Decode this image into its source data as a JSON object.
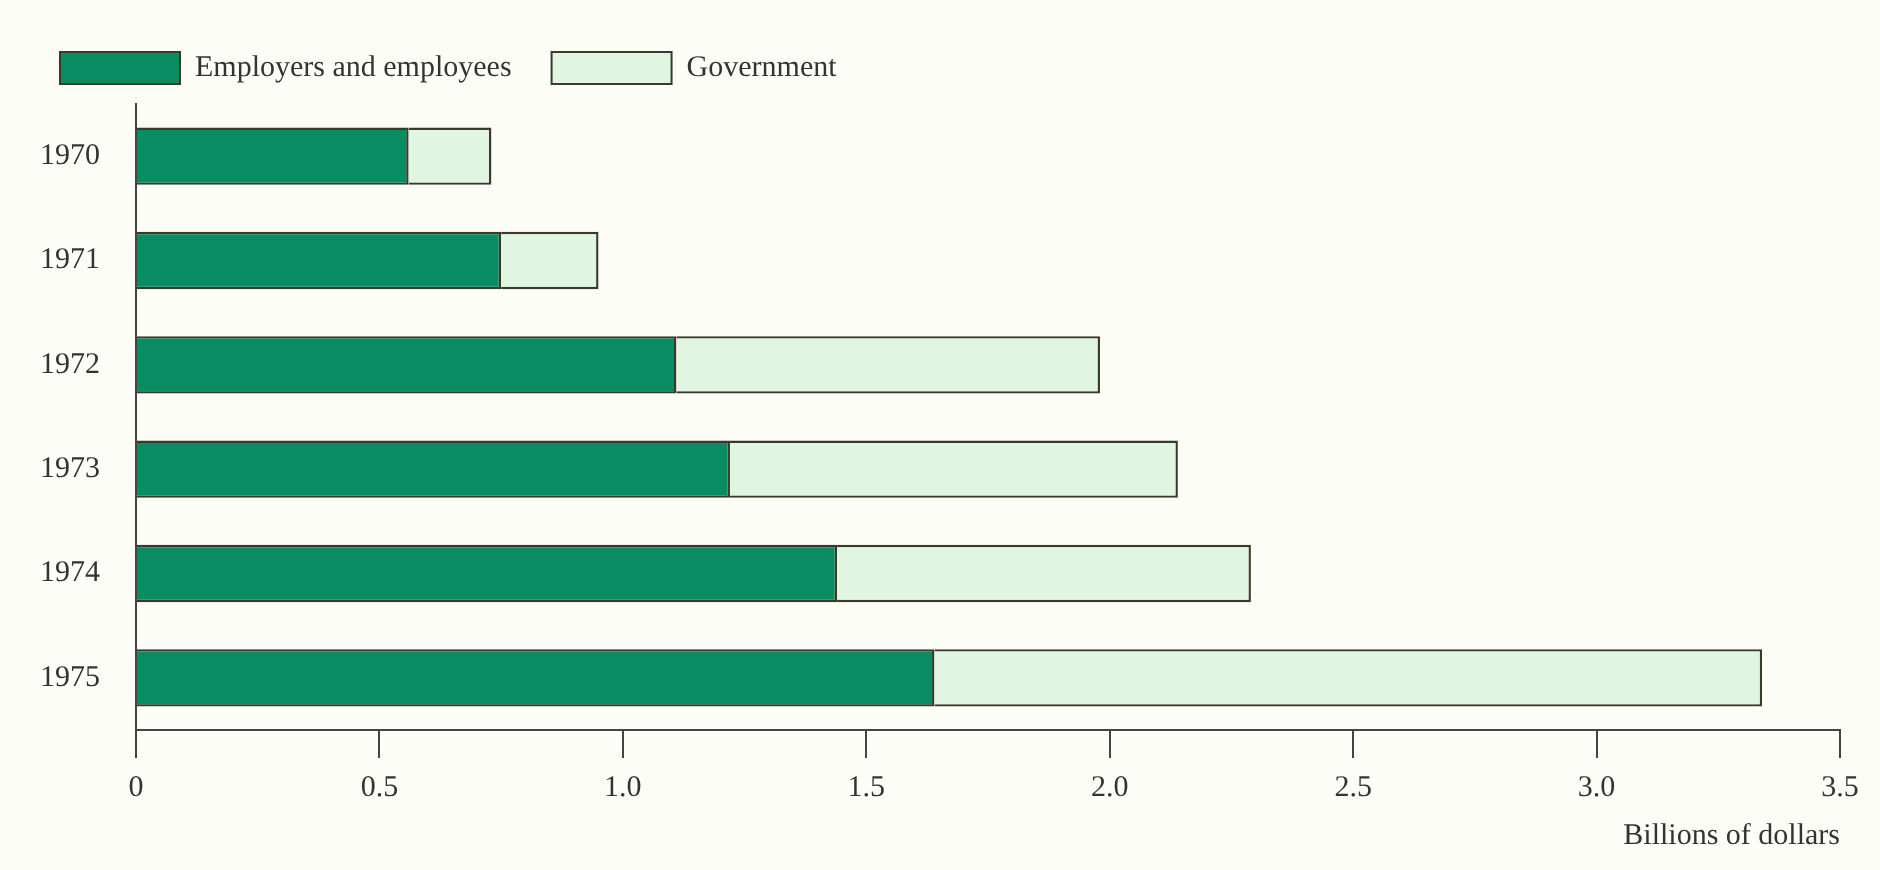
{
  "chart_data": {
    "type": "bar",
    "orientation": "horizontal",
    "stacked": true,
    "categories": [
      "1970",
      "1971",
      "1972",
      "1973",
      "1974",
      "1975"
    ],
    "series": [
      {
        "name": "Employers and employees",
        "color": "#0a8c62",
        "values": [
          0.56,
          0.75,
          1.11,
          1.22,
          1.44,
          1.64
        ]
      },
      {
        "name": "Government",
        "color": "#e0f6e2",
        "values": [
          0.17,
          0.2,
          0.87,
          0.92,
          0.85,
          1.7
        ]
      }
    ],
    "xlabel": "Billions of dollars",
    "xlim": [
      0,
      3.5
    ],
    "xticks": [
      0,
      0.5,
      {
        "value": 1,
        "label": "1.0"
      },
      1.5,
      {
        "value": 2,
        "label": "2.0"
      },
      2.5,
      {
        "value": 3,
        "label": "3.0"
      },
      3.5
    ],
    "grid": false,
    "legend": "top left"
  }
}
